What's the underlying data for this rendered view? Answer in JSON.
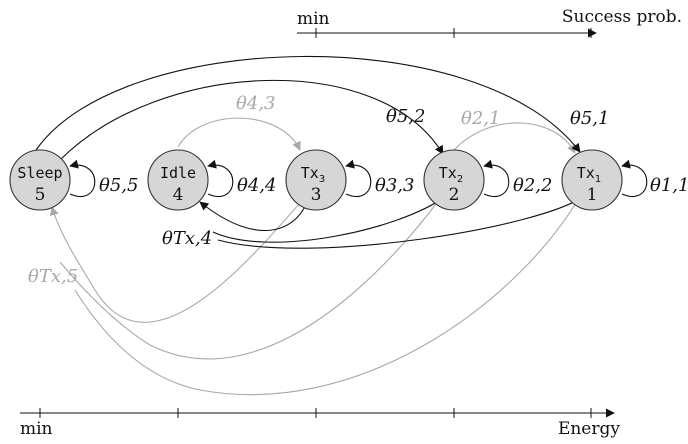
{
  "colors": {
    "black": "#111111",
    "gray": "#a8a8a8",
    "node_fill": "#d6d6d6"
  },
  "top_axis": {
    "left_label": "min",
    "right_label": "Success prob."
  },
  "bottom_axis": {
    "left_label": "min",
    "right_label": "Energy"
  },
  "states": [
    {
      "id": "sleep",
      "name": "Sleep",
      "name_sub": "",
      "number": "5",
      "self_loop": "θ5,5"
    },
    {
      "id": "idle",
      "name": "Idle",
      "name_sub": "",
      "number": "4",
      "self_loop": "θ4,4"
    },
    {
      "id": "tx3",
      "name": "Tx",
      "name_sub": "3",
      "number": "3",
      "self_loop": "θ3,3"
    },
    {
      "id": "tx2",
      "name": "Tx",
      "name_sub": "2",
      "number": "2",
      "self_loop": "θ2,2"
    },
    {
      "id": "tx1",
      "name": "Tx",
      "name_sub": "1",
      "number": "1",
      "self_loop": "θ1,1"
    }
  ],
  "transitions": {
    "theta_4_3": "θ4,3",
    "theta_5_2": "θ5,2",
    "theta_2_1": "θ2,1",
    "theta_5_1": "θ5,1",
    "theta_Tx_4": "θTx,4",
    "theta_Tx_5": "θTx,5"
  }
}
